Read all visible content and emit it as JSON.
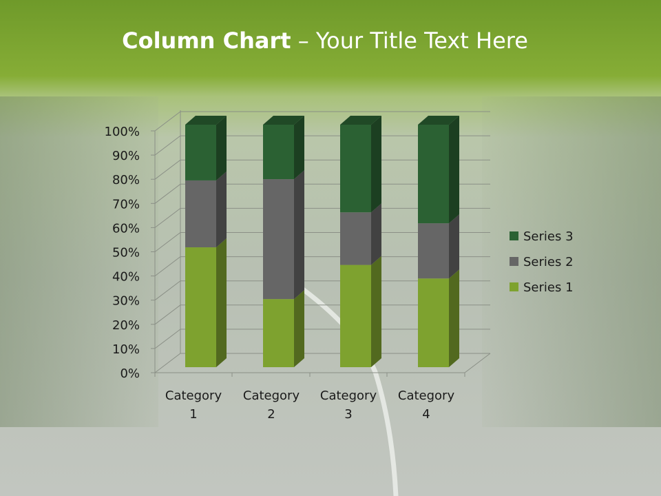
{
  "slide": {
    "title_bold": "Column Chart",
    "title_rest": " – Your Title Text Here"
  },
  "chart_data": {
    "type": "bar",
    "subtype": "3d-100%-stacked-column",
    "categories": [
      "Category 1",
      "Category 2",
      "Category 3",
      "Category 4"
    ],
    "series": [
      {
        "name": "Series 1",
        "values": [
          4.3,
          2.5,
          3.5,
          4.5
        ],
        "color": "#7ea22f"
      },
      {
        "name": "Series 2",
        "values": [
          2.4,
          4.4,
          1.8,
          2.8
        ],
        "color": "#666666"
      },
      {
        "name": "Series 3",
        "values": [
          2,
          2,
          3,
          5
        ],
        "color": "#2b6133"
      }
    ],
    "yticks": [
      "0%",
      "10%",
      "20%",
      "30%",
      "40%",
      "50%",
      "60%",
      "70%",
      "80%",
      "90%",
      "100%"
    ],
    "ylim": [
      0,
      100
    ],
    "grid": true,
    "legend": "right"
  }
}
